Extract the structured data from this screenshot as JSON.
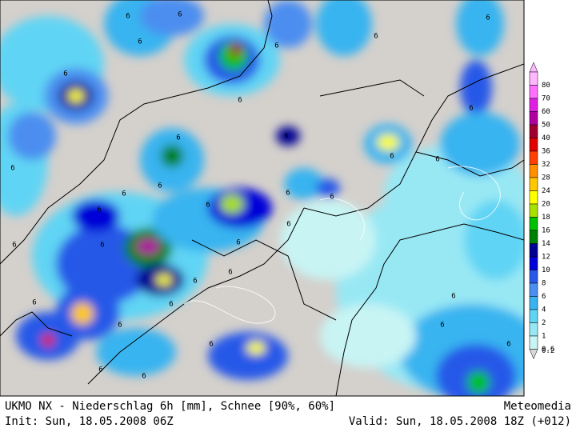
{
  "map": {
    "legend": [
      {
        "label": "80",
        "color": "#ffb8ff"
      },
      {
        "label": "70",
        "color": "#ff70ff"
      },
      {
        "label": "60",
        "color": "#e020e0"
      },
      {
        "label": "50",
        "color": "#b000a0"
      },
      {
        "label": "40",
        "color": "#a00030"
      },
      {
        "label": "36",
        "color": "#e00000"
      },
      {
        "label": "32",
        "color": "#ff4000"
      },
      {
        "label": "28",
        "color": "#ff9000"
      },
      {
        "label": "24",
        "color": "#ffc800"
      },
      {
        "label": "20",
        "color": "#ffff00"
      },
      {
        "label": "18",
        "color": "#a8e000"
      },
      {
        "label": "16",
        "color": "#00c000"
      },
      {
        "label": "14",
        "color": "#008000"
      },
      {
        "label": "12",
        "color": "#000090"
      },
      {
        "label": "10",
        "color": "#0000d8"
      },
      {
        "label": "8",
        "color": "#2858e8"
      },
      {
        "label": "6",
        "color": "#4c8ef0"
      },
      {
        "label": "4",
        "color": "#38b4f0"
      },
      {
        "label": "2",
        "color": "#60d4f4"
      },
      {
        "label": "1",
        "color": "#98e8f4"
      },
      {
        "label": "0.6",
        "color": "#c8f4f4"
      },
      {
        "label": "0.2",
        "color": "#d8d8d8"
      }
    ],
    "contour_label": "6",
    "footer": {
      "title": "UKMO NX - Niederschlag 6h [mm], Schnee [90%, 60%]",
      "brand": "Meteomedia",
      "init": "Init: Sun, 18.05.2008 06Z",
      "valid": "Valid: Sun, 18.05.2008 18Z (+012)"
    }
  }
}
